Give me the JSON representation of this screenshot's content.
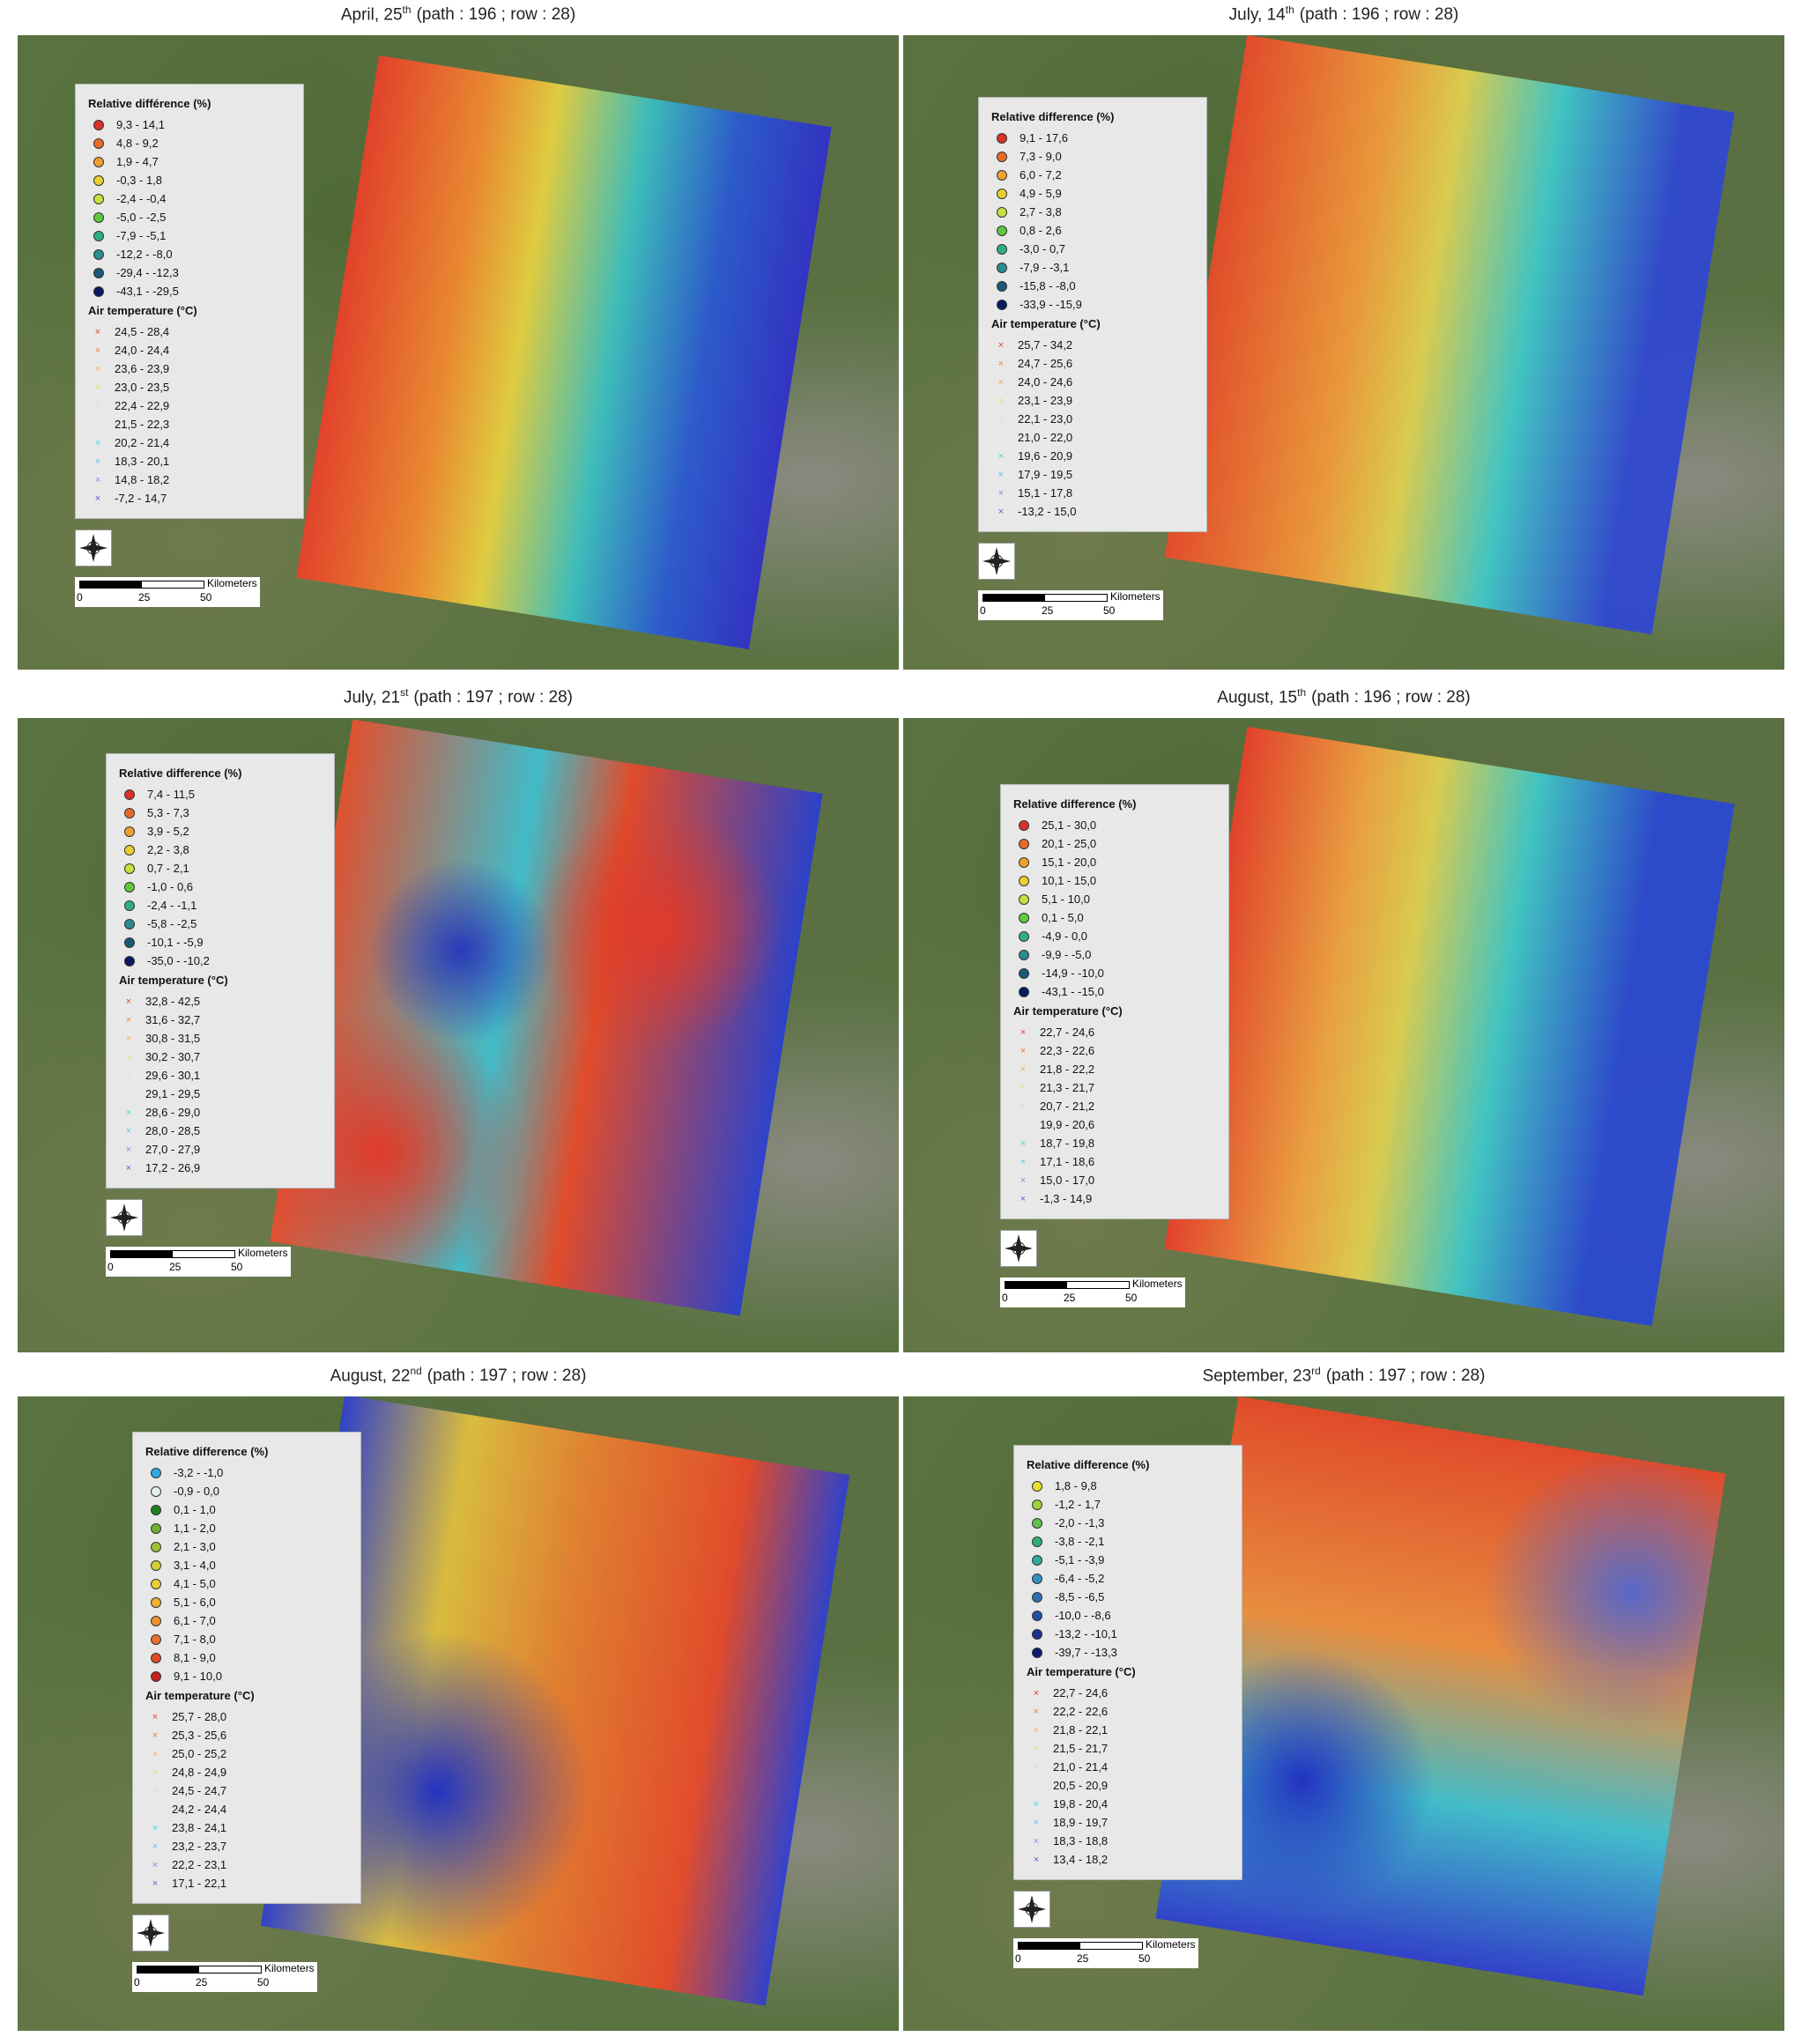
{
  "panels": [
    {
      "title": "April, 25",
      "title_sup": "th",
      "title_path": "(path : 196 ; row : 28)",
      "relative_title": "Relative différence (%)",
      "relative": [
        "9,3 - 14,1",
        "4,8 - 9,2",
        "1,9 - 4,7",
        "-0,3 - 1,8",
        "-2,4 - -0,4",
        "-5,0 - -2,5",
        "-7,9 - -5,1",
        "-12,2 - -8,0",
        "-29,4 - -12,3",
        "-43,1 - -29,5"
      ],
      "air_title": "Air temperature (°C)",
      "air": [
        "24,5 - 28,4",
        "24,0 - 24,4",
        "23,6 - 23,9",
        "23,0 - 23,5",
        "22,4 - 22,9",
        "21,5 - 22,3",
        "20,2 - 21,4",
        "18,3 - 20,1",
        "14,8 - 18,2",
        "-7,2 - 14,7"
      ],
      "scale_unit": "Kilometers",
      "scale_labels": [
        "0",
        "25",
        "50"
      ]
    },
    {
      "title": "July, 14",
      "title_sup": "th",
      "title_path": "(path : 196 ; row : 28)",
      "relative_title": "Relative difference (%)",
      "relative": [
        "9,1 - 17,6",
        "7,3 - 9,0",
        "6,0 - 7,2",
        "4,9 - 5,9",
        "2,7 - 3,8",
        "0,8 - 2,6",
        "-3,0 - 0,7",
        "-7,9 - -3,1",
        "-15,8 - -8,0",
        "-33,9 - -15,9"
      ],
      "air_title": "Air temperature (°C)",
      "air": [
        "25,7 - 34,2",
        "24,7 - 25,6",
        "24,0 - 24,6",
        "23,1 - 23,9",
        "22,1 - 23,0",
        "21,0 - 22,0",
        "19,6 - 20,9",
        "17,9 - 19,5",
        "15,1 - 17,8",
        "-13,2 - 15,0"
      ],
      "scale_unit": "Kilometers",
      "scale_labels": [
        "0",
        "25",
        "50"
      ]
    },
    {
      "title": "July, 21",
      "title_sup": "st",
      "title_path": "(path : 197 ; row : 28)",
      "relative_title": "Relative difference (%)",
      "relative": [
        "7,4 - 11,5",
        "5,3 - 7,3",
        "3,9 - 5,2",
        "2,2 - 3,8",
        "0,7 - 2,1",
        "-1,0 - 0,6",
        "-2,4 - -1,1",
        "-5,8 - -2,5",
        "-10,1 - -5,9",
        "-35,0 - -10,2"
      ],
      "air_title": "Air temperature (°C)",
      "air": [
        "32,8 - 42,5",
        "31,6 - 32,7",
        "30,8 - 31,5",
        "30,2 - 30,7",
        "29,6 - 30,1",
        "29,1 - 29,5",
        "28,6 - 29,0",
        "28,0 - 28,5",
        "27,0 - 27,9",
        "17,2 - 26,9"
      ],
      "scale_unit": "Kilometers",
      "scale_labels": [
        "0",
        "25",
        "50"
      ]
    },
    {
      "title": "August, 15",
      "title_sup": "th",
      "title_path": "(path : 196 ; row : 28)",
      "relative_title": "Relative difference (%)",
      "relative": [
        "25,1 - 30,0",
        "20,1 - 25,0",
        "15,1 - 20,0",
        "10,1 - 15,0",
        "5,1 - 10,0",
        "0,1 - 5,0",
        "-4,9 - 0,0",
        "-9,9 - -5,0",
        "-14,9 - -10,0",
        "-43,1 - -15,0"
      ],
      "air_title": "Air temperature (°C)",
      "air": [
        "22,7 - 24,6",
        "22,3 - 22,6",
        "21,8 - 22,2",
        "21,3 - 21,7",
        "20,7 - 21,2",
        "19,9 - 20,6",
        "18,7 - 19,8",
        "17,1 - 18,6",
        "15,0 - 17,0",
        "-1,3 - 14,9"
      ],
      "scale_unit": "Kilometers",
      "scale_labels": [
        "0",
        "25",
        "50"
      ]
    },
    {
      "title": "August, 22",
      "title_sup": "nd",
      "title_path": "(path : 197 ; row : 28)",
      "relative_title": "Relative difference (%)",
      "relative": [
        "-3,2 - -1,0",
        "-0,9 - 0,0",
        "0,1 - 1,0",
        "1,1 - 2,0",
        "2,1 - 3,0",
        "3,1 - 4,0",
        "4,1 - 5,0",
        "5,1 - 6,0",
        "6,1 - 7,0",
        "7,1 - 8,0",
        "8,1 - 9,0",
        "9,1 - 10,0"
      ],
      "air_title": "Air temperature (°C)",
      "air": [
        "25,7 - 28,0",
        "25,3 - 25,6",
        "25,0 - 25,2",
        "24,8 - 24,9",
        "24,5 - 24,7",
        "24,2 - 24,4",
        "23,8 - 24,1",
        "23,2 - 23,7",
        "22,2 - 23,1",
        "17,1 - 22,1"
      ],
      "scale_unit": "Kilometers",
      "scale_labels": [
        "0",
        "25",
        "50"
      ]
    },
    {
      "title": "September, 23",
      "title_sup": "rd",
      "title_path": "(path : 197 ; row : 28)",
      "relative_title": "Relative difference (%)",
      "relative": [
        "1,8 - 9,8",
        "-1,2 - 1,7",
        "-2,0 - -1,3",
        "-3,8 - -2,1",
        "-5,1 - -3,9",
        "-6,4 - -5,2",
        "-8,5 - -6,5",
        "-10,0 - -8,6",
        "-13,2 - -10,1",
        "-39,7 - -13,3"
      ],
      "air_title": "Air temperature (°C)",
      "air": [
        "22,7 - 24,6",
        "22,2 - 22,6",
        "21,8 - 22,1",
        "21,5 - 21,7",
        "21,0 - 21,4",
        "20,5 - 20,9",
        "19,8 - 20,4",
        "18,9 - 19,7",
        "18,3 - 18,8",
        "13,4 - 18,2"
      ],
      "scale_unit": "Kilometers",
      "scale_labels": [
        "0",
        "25",
        "50"
      ]
    }
  ]
}
